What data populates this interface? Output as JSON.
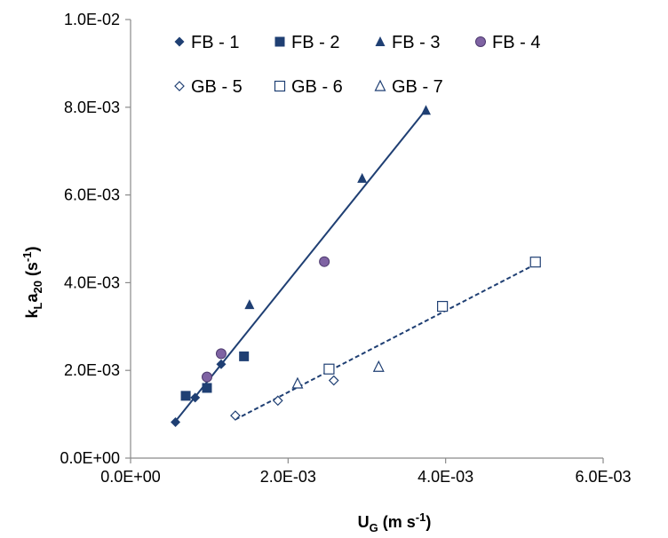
{
  "chart_data": {
    "type": "scatter",
    "xlabel": {
      "main": "U",
      "sub": "G",
      "rest": " (m s",
      "sup": "-1",
      "close": ")"
    },
    "ylabel": {
      "k": "k",
      "kSub": "L",
      "a": "a",
      "aSub": "20",
      "rest": " (s",
      "sup": "-1",
      "close": ")"
    },
    "xlim": [
      0,
      0.006
    ],
    "ylim": [
      0,
      0.01
    ],
    "x_ticks": [
      0,
      0.002,
      0.004,
      0.006
    ],
    "x_tick_labels": [
      "0.0E+00",
      "2.0E-03",
      "4.0E-03",
      "6.0E-03"
    ],
    "y_ticks": [
      0,
      0.002,
      0.004,
      0.006,
      0.008,
      0.01
    ],
    "y_tick_labels": [
      "0.0E+00",
      "2.0E-03",
      "4.0E-03",
      "6.0E-03",
      "8.0E-03",
      "1.0E-02"
    ],
    "grid": false,
    "legend_position": "top-left",
    "colors": {
      "series": "#1f3f73",
      "fb4_fill": "#7f63a3",
      "fb4_stroke": "#4d3a6e",
      "axis": "#8a8a8a"
    },
    "series": [
      {
        "name": "FB - 1",
        "marker": "diamond-filled",
        "x": [
          0.00057,
          0.00082,
          0.00115
        ],
        "y": [
          0.00082,
          0.00138,
          0.00214
        ]
      },
      {
        "name": "FB - 2",
        "marker": "square-filled",
        "x": [
          0.0007,
          0.00097,
          0.00144
        ],
        "y": [
          0.00142,
          0.0016,
          0.00232
        ]
      },
      {
        "name": "FB - 3",
        "marker": "triangle-filled",
        "x": [
          0.00151,
          0.00294,
          0.00375
        ],
        "y": [
          0.0035,
          0.00638,
          0.00793
        ]
      },
      {
        "name": "FB - 4",
        "marker": "circle-filled",
        "x": [
          0.00097,
          0.00115,
          0.00246
        ],
        "y": [
          0.00185,
          0.00238,
          0.00448
        ]
      },
      {
        "name": "GB - 5",
        "marker": "diamond-open",
        "x": [
          0.00133,
          0.00187,
          0.00258
        ],
        "y": [
          0.00097,
          0.00131,
          0.00177
        ]
      },
      {
        "name": "GB - 6",
        "marker": "square-open",
        "x": [
          0.00252,
          0.00396,
          0.00514
        ],
        "y": [
          0.00203,
          0.00346,
          0.00447
        ]
      },
      {
        "name": "GB - 7",
        "marker": "triangle-open",
        "x": [
          0.00212,
          0.00315
        ],
        "y": [
          0.0017,
          0.00208
        ]
      }
    ],
    "trendlines": [
      {
        "group": "FB",
        "style": "solid",
        "x": [
          0.00057,
          0.00373
        ],
        "y": [
          0.00084,
          0.0079
        ]
      },
      {
        "group": "GB",
        "style": "dashed",
        "x": [
          0.00133,
          0.00514
        ],
        "y": [
          0.00088,
          0.00442
        ]
      }
    ]
  }
}
